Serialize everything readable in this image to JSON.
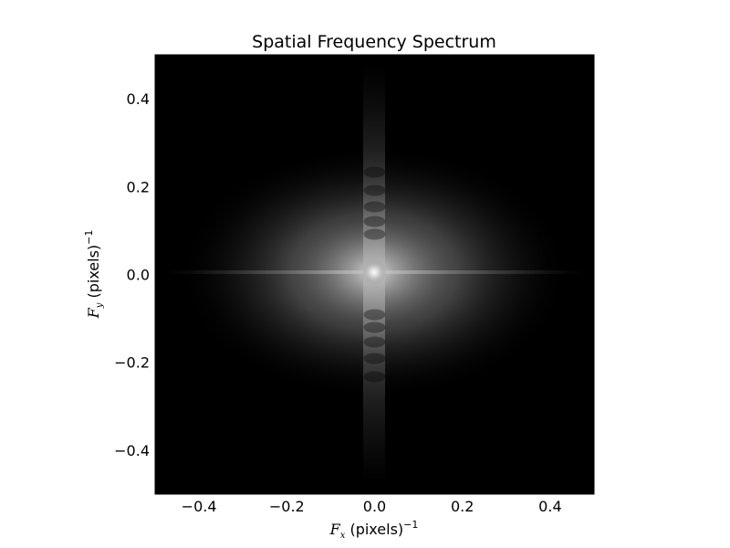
{
  "chart_data": {
    "type": "heatmap",
    "title": "Spatial Frequency Spectrum",
    "xlabel": {
      "symbol": "F",
      "subscript": "x",
      "text": " (pixels)",
      "exponent": "−1"
    },
    "ylabel": {
      "symbol": "F",
      "subscript": "y",
      "text": " (pixels)",
      "exponent": "−1"
    },
    "xlim": [
      -0.5,
      0.5
    ],
    "ylim": [
      -0.5,
      0.5
    ],
    "xticks": [
      -0.4,
      -0.2,
      0.0,
      0.2,
      0.4
    ],
    "xtick_labels": [
      "−0.4",
      "−0.2",
      "0.0",
      "0.2",
      "0.4"
    ],
    "yticks": [
      -0.4,
      -0.2,
      0.0,
      0.2,
      0.4
    ],
    "ytick_labels": [
      "−0.4",
      "−0.2",
      "0.0",
      "0.2",
      "0.4"
    ],
    "colormap": "gray",
    "background_color": "#000000",
    "peak": {
      "x": 0.0,
      "y": 0.0
    },
    "grid": false
  }
}
